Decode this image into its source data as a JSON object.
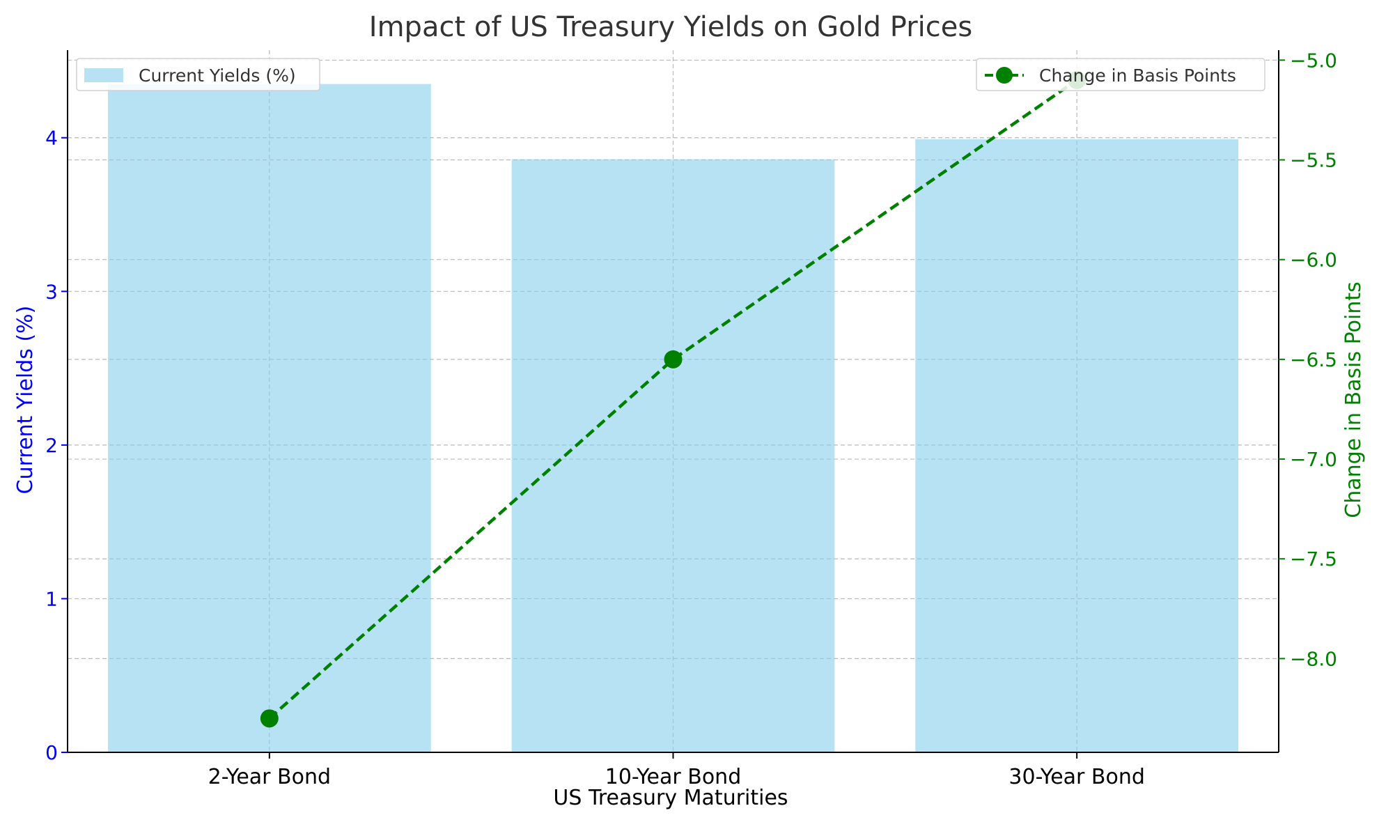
{
  "chart_data": {
    "type": "bar",
    "title": "Impact of US Treasury Yields on Gold Prices",
    "xlabel": "US Treasury Maturities",
    "ylabel": "Current Yields (%)",
    "y2label": "Change in Basis Points",
    "categories": [
      "2-Year Bond",
      "10-Year Bond",
      "30-Year Bond"
    ],
    "series": [
      {
        "name": "Current Yields (%)",
        "type": "bar",
        "axis": "left",
        "values": [
          4.35,
          3.86,
          3.99
        ]
      },
      {
        "name": "Change in Basis Points",
        "type": "line",
        "axis": "right",
        "style": "dashed",
        "marker": "circle",
        "values": [
          -8.3,
          -6.5,
          -5.1
        ]
      }
    ],
    "ylim": [
      0,
      4.57
    ],
    "y2lim": [
      -8.47,
      -4.95
    ],
    "yticks": [
      0,
      1,
      2,
      3,
      4
    ],
    "y2ticks": [
      -8.0,
      -7.5,
      -7.0,
      -6.5,
      -6.0,
      -5.5,
      -5.0
    ],
    "y2tick_labels": [
      "−8.0",
      "−7.5",
      "−7.0",
      "−6.5",
      "−6.0",
      "−5.5",
      "−5.0"
    ],
    "grid": true,
    "legend_left_placement": "top-left",
    "legend_right_placement": "top-right",
    "colors": {
      "bar": "#87ceeb",
      "line": "#008000",
      "left_axis": "#0000ff",
      "right_axis": "#008000",
      "title": "#333333"
    }
  }
}
